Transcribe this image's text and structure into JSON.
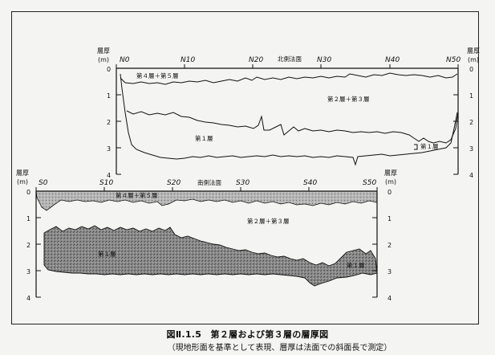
{
  "figure": {
    "title": "図Ⅱ.1.5　第２層および第３層の層厚図",
    "subtitle": "（現地形面を基準として表現、層厚は法面での斜面長で測定）"
  },
  "upper": {
    "slope_title": "北側法面",
    "axis_label": "層厚",
    "axis_unit": "(m)",
    "y_ticks": [
      "0",
      "1",
      "2",
      "3",
      "4"
    ],
    "x_stations": [
      "N0",
      "N10",
      "N20",
      "N30",
      "N40",
      "N50"
    ],
    "labels": {
      "l45": "第４層＋第５層",
      "l23": "第２層＋第３層",
      "l1a": "第１層",
      "l1b": "第１層"
    }
  },
  "lower": {
    "slope_title": "南側法面",
    "axis_label": "層厚",
    "axis_unit": "(m)",
    "y_ticks": [
      "0",
      "1",
      "2",
      "3",
      "4"
    ],
    "x_stations": [
      "S0",
      "S10",
      "S20",
      "S30",
      "S40",
      "S50"
    ],
    "labels": {
      "l45": "第４層＋第５層",
      "l23": "第２層＋第３層",
      "l1a": "第１層",
      "l1b": "第１層"
    }
  }
}
